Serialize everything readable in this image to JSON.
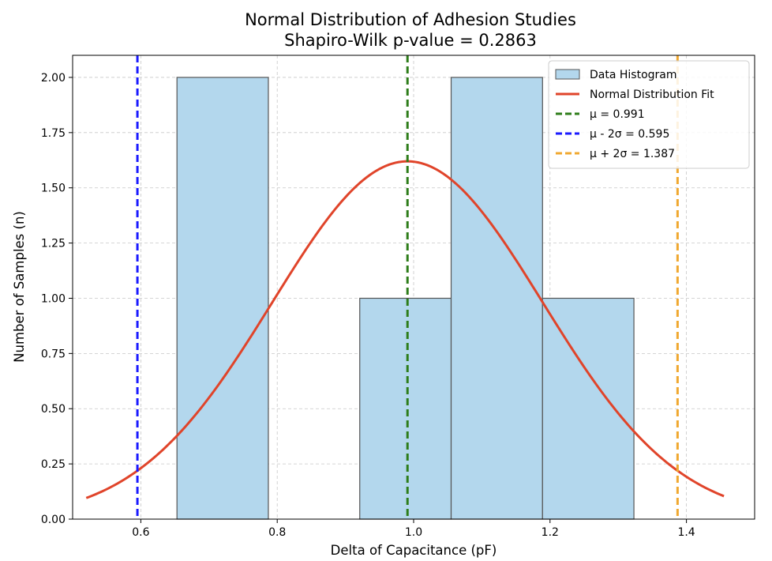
{
  "chart_data": {
    "type": "histogram",
    "title": "Normal Distribution of Adhesion Studies",
    "subtitle": "Shapiro-Wilk p-value = 0.2863",
    "xlabel": "Delta of Capacitance (pF)",
    "ylabel": "Number of Samples (n)",
    "xlim": [
      0.5,
      1.5
    ],
    "ylim": [
      0,
      2.1
    ],
    "x_ticks": [
      0.6,
      0.8,
      1.0,
      1.2,
      1.4
    ],
    "x_tick_labels": [
      "0.6",
      "0.8",
      "1.0",
      "1.2",
      "1.4"
    ],
    "y_ticks": [
      0,
      0.25,
      0.5,
      0.75,
      1.0,
      1.25,
      1.5,
      1.75,
      2.0
    ],
    "y_tick_labels": [
      "0.00",
      "0.25",
      "0.50",
      "0.75",
      "1.00",
      "1.25",
      "1.50",
      "1.75",
      "2.00"
    ],
    "grid": true,
    "histogram": {
      "name": "Data Histogram",
      "bin_edges": [
        0.653,
        0.787,
        0.921,
        1.055,
        1.189,
        1.323
      ],
      "counts": [
        2,
        0,
        1,
        2,
        1
      ],
      "color": "#b3d7ed",
      "edge_color": "#555555"
    },
    "normal_fit": {
      "name": "Normal Distribution Fit",
      "mu": 0.991,
      "sigma": 0.198,
      "peak": 1.62,
      "x_range": [
        0.52,
        1.455
      ],
      "color": "#e0442a"
    },
    "vlines": [
      {
        "name": "μ = 0.991",
        "x": 0.991,
        "color": "#2e7d1a"
      },
      {
        "name": "μ - 2σ = 0.595",
        "x": 0.595,
        "color": "#1a1aff"
      },
      {
        "name": "μ + 2σ = 1.387",
        "x": 1.387,
        "color": "#f0a830"
      }
    ],
    "legend_position": "top-right"
  }
}
